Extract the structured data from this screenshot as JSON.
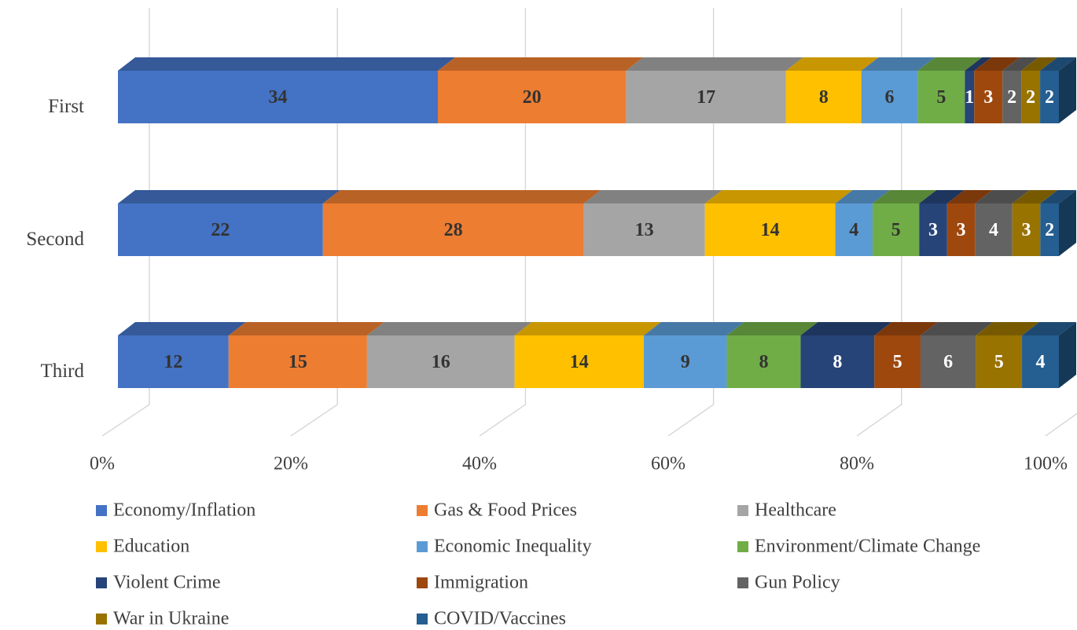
{
  "chart_data": {
    "type": "stacked_bar_100",
    "orientation": "horizontal",
    "categories": [
      "First",
      "Second",
      "Third"
    ],
    "series": [
      {
        "name": "Economy/Inflation",
        "color": "#4472c4",
        "label_color": "#333333",
        "values": [
          34,
          22,
          12
        ]
      },
      {
        "name": "Gas & Food Prices",
        "color": "#ed7d31",
        "label_color": "#333333",
        "values": [
          20,
          28,
          15
        ]
      },
      {
        "name": "Healthcare",
        "color": "#a5a5a5",
        "label_color": "#333333",
        "values": [
          17,
          13,
          16
        ]
      },
      {
        "name": "Education",
        "color": "#ffc000",
        "label_color": "#333333",
        "values": [
          8,
          14,
          14
        ]
      },
      {
        "name": "Economic Inequality",
        "color": "#5b9bd5",
        "label_color": "#333333",
        "values": [
          6,
          4,
          9
        ]
      },
      {
        "name": "Environment/Climate Change",
        "color": "#70ad47",
        "label_color": "#333333",
        "values": [
          5,
          5,
          8
        ]
      },
      {
        "name": "Violent Crime",
        "color": "#264478",
        "label_color": "#ffffff",
        "values": [
          1,
          3,
          8
        ]
      },
      {
        "name": "Immigration",
        "color": "#9e480e",
        "label_color": "#ffffff",
        "values": [
          3,
          3,
          5
        ]
      },
      {
        "name": "Gun Policy",
        "color": "#636363",
        "label_color": "#ffffff",
        "values": [
          2,
          4,
          6
        ]
      },
      {
        "name": "War in Ukraine",
        "color": "#997300",
        "label_color": "#ffffff",
        "values": [
          2,
          3,
          5
        ]
      },
      {
        "name": "COVID/Vaccines",
        "color": "#255e91",
        "label_color": "#ffffff",
        "values": [
          2,
          2,
          4
        ]
      }
    ],
    "xlim": [
      0,
      100
    ],
    "xticks": [
      {
        "value": 0,
        "label": "0%"
      },
      {
        "value": 20,
        "label": "20%"
      },
      {
        "value": 40,
        "label": "40%"
      },
      {
        "value": 60,
        "label": "60%"
      },
      {
        "value": 80,
        "label": "80%"
      },
      {
        "value": 100,
        "label": "100%"
      }
    ],
    "grid": true,
    "legend": "bottom"
  }
}
